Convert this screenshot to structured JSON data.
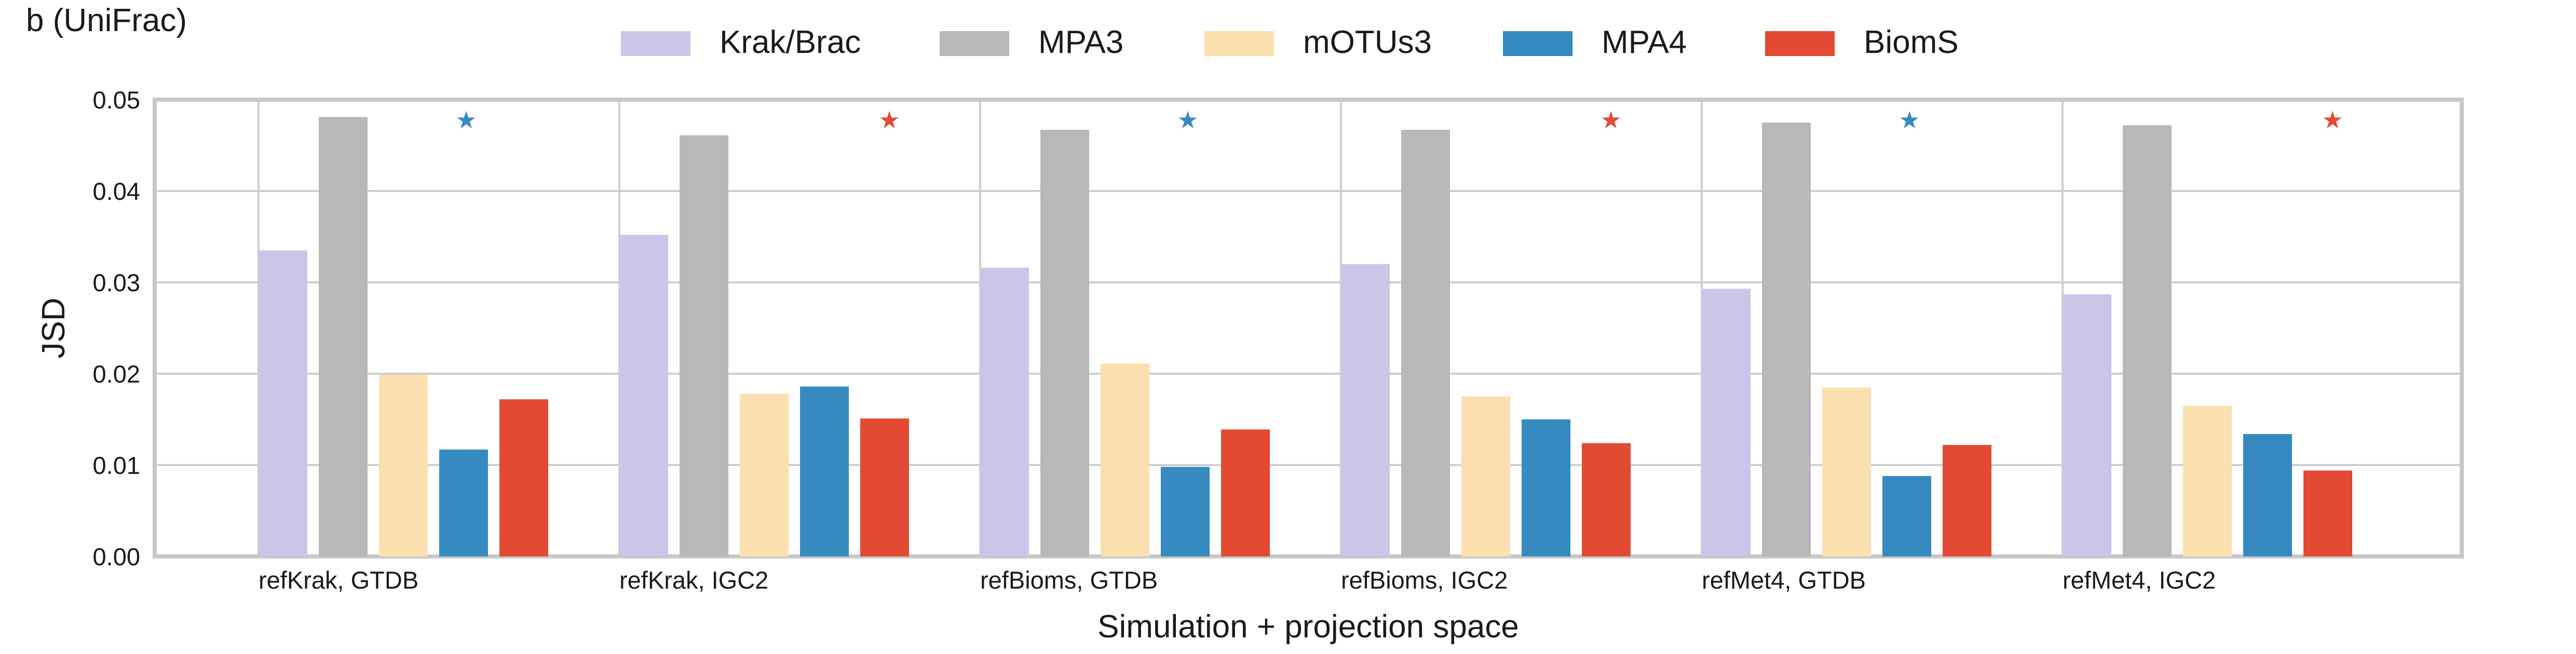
{
  "panel_label": "b (UniFrac)",
  "chart_data": {
    "type": "bar",
    "xlabel": "Simulation + projection space",
    "ylabel": "JSD",
    "ylim": [
      0,
      0.05
    ],
    "yticks": [
      "0.00",
      "0.01",
      "0.02",
      "0.03",
      "0.04",
      "0.05"
    ],
    "grid": true,
    "legend_position": "top",
    "categories": [
      "refKrak, GTDB",
      "refKrak, IGC2",
      "refBioms, GTDB",
      "refBioms, IGC2",
      "refMet4, GTDB",
      "refMet4, IGC2"
    ],
    "series": [
      {
        "name": "Krak/Brac",
        "color": "#cbc5e8",
        "values": [
          0.0335,
          0.0352,
          0.0316,
          0.032,
          0.0293,
          0.0287
        ]
      },
      {
        "name": "MPA3",
        "color": "#b8b8b8",
        "values": [
          0.0481,
          0.0461,
          0.0467,
          0.0467,
          0.0475,
          0.0472
        ]
      },
      {
        "name": "mOTUs3",
        "color": "#fbdfae",
        "values": [
          0.0199,
          0.0178,
          0.0211,
          0.0175,
          0.0185,
          0.0165
        ]
      },
      {
        "name": "MPA4",
        "color": "#368ac0",
        "values": [
          0.0117,
          0.0186,
          0.0098,
          0.015,
          0.0088,
          0.0134
        ]
      },
      {
        "name": "BiomS",
        "color": "#e24a33",
        "values": [
          0.0172,
          0.0151,
          0.0139,
          0.0124,
          0.0122,
          0.0094
        ]
      }
    ],
    "best_markers": [
      {
        "category": "refKrak, GTDB",
        "series": "MPA4",
        "symbol": "★",
        "color": "#368ac0"
      },
      {
        "category": "refKrak, IGC2",
        "series": "BiomS",
        "symbol": "★",
        "color": "#e24a33"
      },
      {
        "category": "refBioms, GTDB",
        "series": "MPA4",
        "symbol": "★",
        "color": "#368ac0"
      },
      {
        "category": "refBioms, IGC2",
        "series": "BiomS",
        "symbol": "★",
        "color": "#e24a33"
      },
      {
        "category": "refMet4, GTDB",
        "series": "MPA4",
        "symbol": "★",
        "color": "#368ac0"
      },
      {
        "category": "refMet4, IGC2",
        "series": "BiomS",
        "symbol": "★",
        "color": "#e24a33"
      }
    ]
  }
}
